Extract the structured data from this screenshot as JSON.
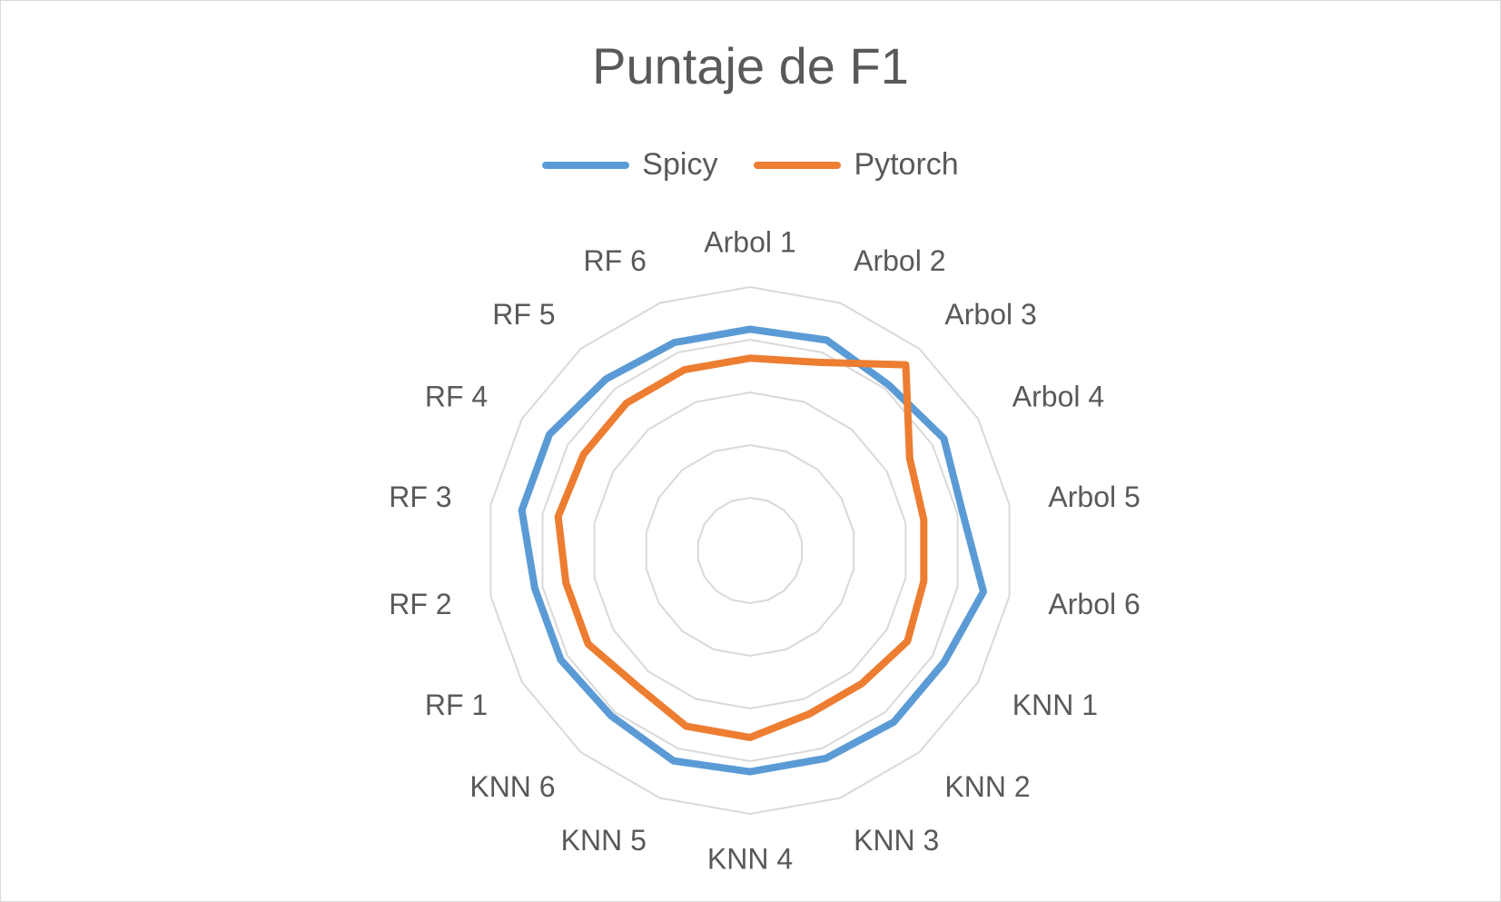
{
  "chart_data": {
    "type": "radar",
    "title": "Puntaje de F1",
    "categories": [
      "Arbol 1",
      "Arbol 2",
      "Arbol 3",
      "Arbol 4",
      "Arbol 5",
      "Arbol 6",
      "KNN 1",
      "KNN 2",
      "KNN 3",
      "KNN 4",
      "KNN 5",
      "KNN 6",
      "RF 1",
      "RF 2",
      "RF 3",
      "RF 4",
      "RF 5",
      "RF 6"
    ],
    "series": [
      {
        "name": "Spicy",
        "color": "#5B9BD5",
        "values": [
          0.84,
          0.85,
          0.82,
          0.85,
          0.82,
          0.9,
          0.85,
          0.85,
          0.84,
          0.84,
          0.85,
          0.82,
          0.83,
          0.83,
          0.88,
          0.88,
          0.85,
          0.84
        ]
      },
      {
        "name": "Pytorch",
        "color": "#ED7D31",
        "values": [
          0.73,
          0.76,
          0.92,
          0.7,
          0.67,
          0.67,
          0.69,
          0.66,
          0.66,
          0.71,
          0.71,
          0.67,
          0.71,
          0.71,
          0.74,
          0.73,
          0.73,
          0.73
        ]
      }
    ],
    "rlim": [
      0,
      1
    ],
    "grid": true,
    "legend": "top"
  }
}
